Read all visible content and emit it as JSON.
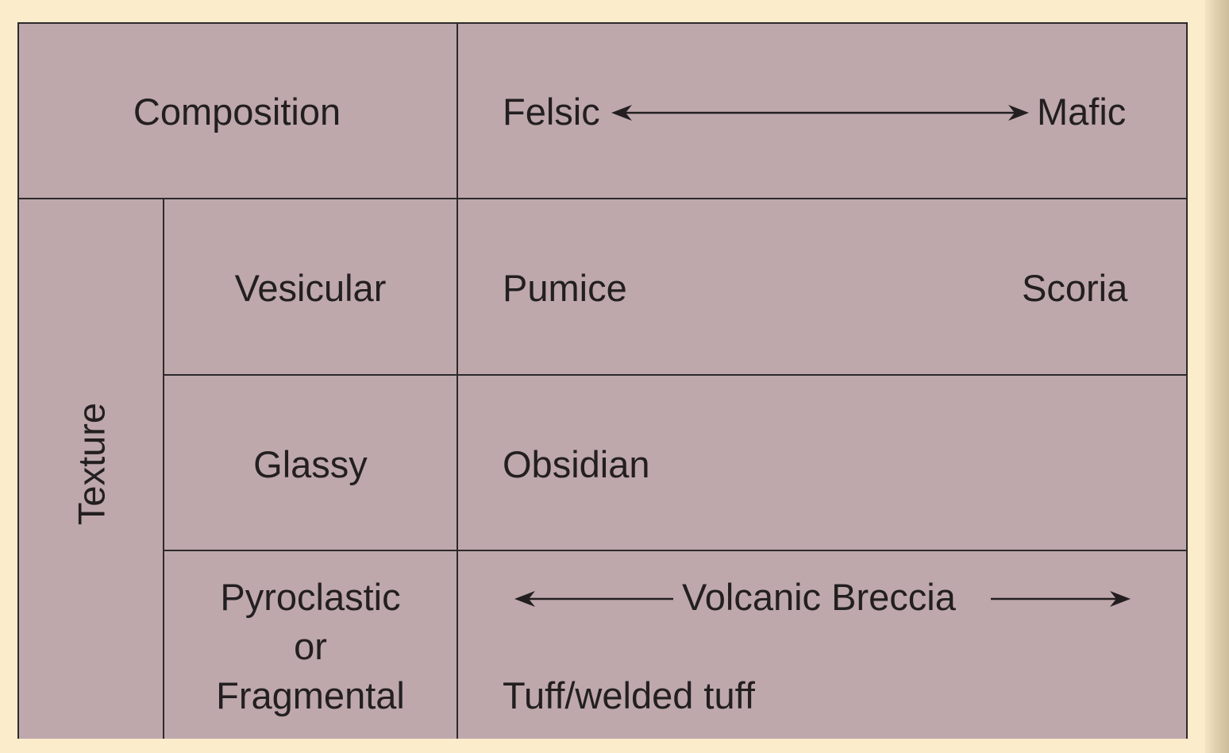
{
  "header": {
    "composition": "Composition",
    "felsic": "Felsic",
    "mafic": "Mafic"
  },
  "texture_label": "Texture",
  "rows": [
    {
      "texture": "Vesicular",
      "felsic_rock": "Pumice",
      "mafic_rock": "Scoria"
    },
    {
      "texture": "Glassy",
      "felsic_rock": "Obsidian"
    },
    {
      "texture_lines": [
        "Pyroclastic",
        "or",
        "Fragmental"
      ],
      "breccia": "Volcanic Breccia",
      "tuff": "Tuff/welded tuff"
    }
  ],
  "colors": {
    "background": "#fbeccb",
    "cell": "#bea8ac",
    "lines": "#2c2a2b"
  }
}
